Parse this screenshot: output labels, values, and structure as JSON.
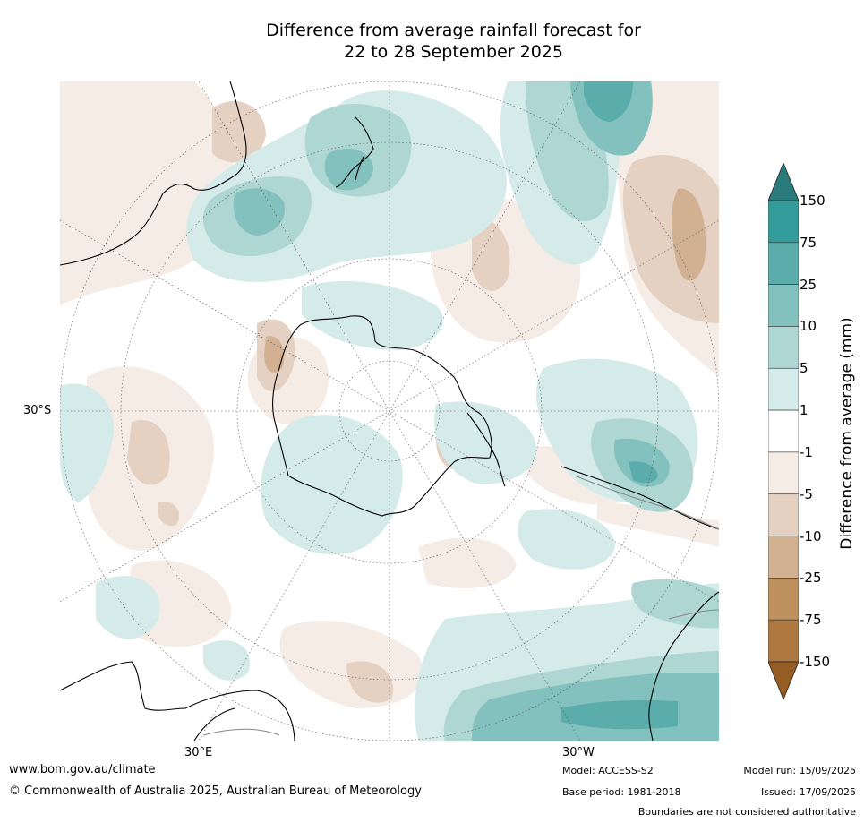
{
  "title": {
    "line1": "Difference from average rainfall forecast for",
    "line2": "22 to 28 September 2025"
  },
  "map": {
    "projection": "south-polar stereographic",
    "labels": {
      "lat_left": "30°S",
      "lon_bottom_left": "30°E",
      "lon_bottom_right": "30°W"
    }
  },
  "colorbar": {
    "title": "Difference from average (mm)",
    "ticks": [
      "150",
      "75",
      "25",
      "10",
      "5",
      "1",
      "-1",
      "-5",
      "-10",
      "-25",
      "-75",
      "-150"
    ],
    "colors": [
      "#2a7b7b",
      "#339b9a",
      "#5aadaa",
      "#83c1be",
      "#aed6d3",
      "#d5ebe9",
      "#ffffff",
      "#f5ece6",
      "#e5d1c1",
      "#d2b192",
      "#bf915f",
      "#ad7841",
      "#955d24"
    ]
  },
  "footer": {
    "website": "www.bom.gov.au/climate",
    "copyright": "© Commonwealth of Australia 2025, Australian Bureau of Meteorology",
    "model": "Model: ACCESS-S2",
    "base_period": "Base period: 1981-2018",
    "model_run": "Model run: 15/09/2025",
    "issued": "Issued: 17/09/2025",
    "disclaimer": "Boundaries are not considered authoritative"
  }
}
